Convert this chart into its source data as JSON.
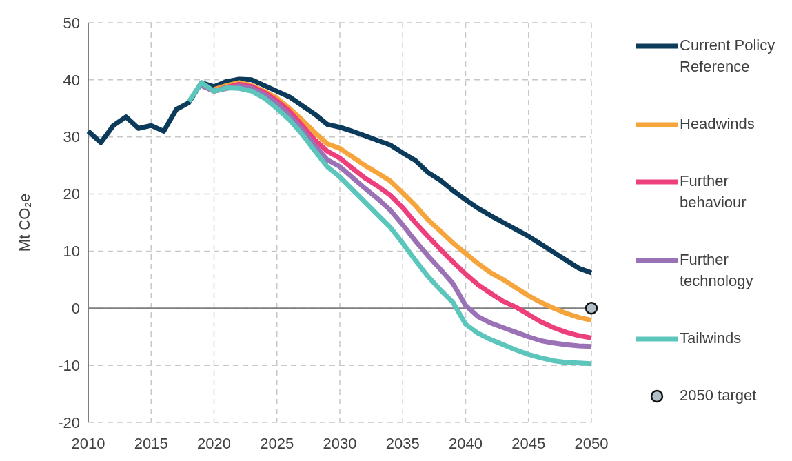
{
  "chart_data": {
    "type": "line",
    "ylabel": "Mt CO₂e",
    "xlim": [
      2010,
      2050
    ],
    "xticks": [
      2010,
      2015,
      2020,
      2025,
      2030,
      2035,
      2040,
      2045,
      2050
    ],
    "ylim": [
      -20,
      50
    ],
    "yticks": [
      -20,
      -10,
      0,
      10,
      20,
      30,
      40,
      50
    ],
    "grid": true,
    "legend": "right",
    "marker": "none",
    "line_style": "solid",
    "ref_lines": [
      {
        "axis": "y",
        "value": 0,
        "color": "#7f7f7f"
      }
    ],
    "series": [
      {
        "name": "Current Policy Reference",
        "color": "#0b3a5a",
        "x": [
          2010,
          2011,
          2012,
          2013,
          2014,
          2015,
          2016,
          2017,
          2018,
          2019,
          2020,
          2021,
          2022,
          2023,
          2024,
          2025,
          2026,
          2027,
          2028,
          2029,
          2030,
          2031,
          2032,
          2033,
          2034,
          2035,
          2036,
          2037,
          2038,
          2039,
          2040,
          2041,
          2042,
          2043,
          2044,
          2045,
          2046,
          2047,
          2048,
          2049,
          2050
        ],
        "values": [
          31,
          29,
          32,
          33.5,
          31.5,
          32,
          31,
          34.8,
          36,
          39.5,
          38.8,
          39.7,
          40.1,
          40,
          39,
          38,
          37,
          35.5,
          34,
          32.2,
          31.7,
          31,
          30.2,
          29.4,
          28.6,
          27.2,
          25.9,
          23.8,
          22.4,
          20.6,
          19,
          17.5,
          16.2,
          15,
          13.8,
          12.6,
          11.2,
          9.8,
          8.4,
          7,
          6.2
        ]
      },
      {
        "name": "Headwinds",
        "color": "#f5a53b",
        "x": [
          2020,
          2021,
          2022,
          2023,
          2024,
          2025,
          2026,
          2027,
          2028,
          2029,
          2030,
          2031,
          2032,
          2033,
          2034,
          2035,
          2036,
          2037,
          2038,
          2039,
          2040,
          2041,
          2042,
          2043,
          2044,
          2045,
          2046,
          2047,
          2048,
          2049,
          2050
        ],
        "values": [
          38.3,
          39,
          39.5,
          39,
          38,
          36.8,
          35,
          33,
          30.8,
          28.8,
          28,
          26.5,
          25,
          23.7,
          22.3,
          20.2,
          18,
          15.5,
          13.5,
          11.4,
          9.6,
          7.8,
          6.2,
          5,
          3.6,
          2.2,
          1,
          0,
          -0.9,
          -1.6,
          -2.1
        ]
      },
      {
        "name": "Further behaviour",
        "color": "#ec3f7c",
        "x": [
          2019,
          2020,
          2021,
          2022,
          2023,
          2024,
          2025,
          2026,
          2027,
          2028,
          2029,
          2030,
          2031,
          2032,
          2033,
          2034,
          2035,
          2036,
          2037,
          2038,
          2039,
          2040,
          2041,
          2042,
          2043,
          2044,
          2045,
          2046,
          2047,
          2048,
          2049,
          2050
        ],
        "values": [
          39,
          38,
          38.7,
          39.2,
          38.8,
          37.8,
          36.3,
          34.5,
          32,
          29.5,
          27.5,
          26.3,
          24.5,
          22.8,
          21.4,
          19.8,
          17.6,
          15,
          12.6,
          10.3,
          8.1,
          6,
          4.1,
          2.6,
          1.2,
          0.2,
          -1.1,
          -2.4,
          -3.4,
          -4.2,
          -4.8,
          -5.2
        ]
      },
      {
        "name": "Further technology",
        "color": "#9b72b5",
        "x": [
          2019,
          2020,
          2021,
          2022,
          2023,
          2024,
          2025,
          2026,
          2027,
          2028,
          2029,
          2030,
          2031,
          2032,
          2033,
          2034,
          2035,
          2036,
          2037,
          2038,
          2039,
          2040,
          2041,
          2042,
          2043,
          2044,
          2045,
          2046,
          2047,
          2048,
          2049,
          2050
        ],
        "values": [
          39,
          38,
          38.5,
          38.9,
          38.5,
          37.4,
          35.8,
          33.8,
          31.3,
          28.5,
          26,
          24.8,
          22.9,
          21,
          19.2,
          17.2,
          14.6,
          11.8,
          9.2,
          6.8,
          4.3,
          0.5,
          -1.5,
          -2.6,
          -3.4,
          -4.2,
          -5,
          -5.7,
          -6.1,
          -6.4,
          -6.6,
          -6.7
        ]
      },
      {
        "name": "Tailwinds",
        "color": "#5cc6bc",
        "x": [
          2018,
          2019,
          2020,
          2021,
          2022,
          2023,
          2024,
          2025,
          2026,
          2027,
          2028,
          2029,
          2030,
          2031,
          2032,
          2033,
          2034,
          2035,
          2036,
          2037,
          2038,
          2039,
          2040,
          2041,
          2042,
          2043,
          2044,
          2045,
          2046,
          2047,
          2048,
          2049,
          2050
        ],
        "values": [
          36.2,
          39.5,
          38,
          38.6,
          38.5,
          38,
          36.8,
          35,
          33,
          30.5,
          27.6,
          24.8,
          23,
          20.8,
          18.6,
          16.4,
          14.2,
          11.4,
          8.4,
          5.6,
          3.2,
          1,
          -2.8,
          -4.4,
          -5.5,
          -6.4,
          -7.3,
          -8.1,
          -8.7,
          -9.2,
          -9.5,
          -9.6,
          -9.7
        ]
      },
      {
        "name": "2050 target",
        "type": "scatter",
        "marker": "circle",
        "color": "#b0bec8",
        "x": [
          2050
        ],
        "values": [
          0
        ]
      }
    ]
  }
}
